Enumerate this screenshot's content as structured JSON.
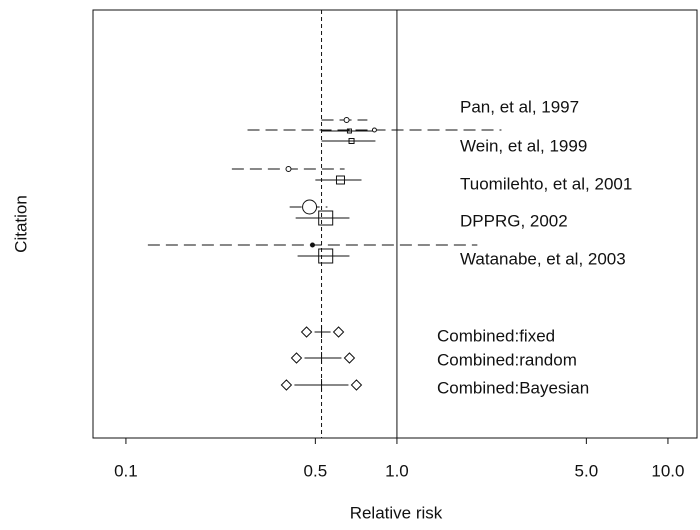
{
  "chart_data": {
    "type": "forest",
    "x_label": "Relative risk",
    "y_label": "Citation",
    "log_x": true,
    "xlim": [
      0.0756,
      12.8
    ],
    "xticks": [
      0.1,
      0.5,
      {
        "value": 1,
        "label": "1.0"
      },
      {
        "value": 5,
        "label": "5.0"
      },
      {
        "value": 10,
        "label": "10.0"
      }
    ],
    "reference_line": 1,
    "pooled_line": 0.527,
    "studies": [
      {
        "name": "Pan, et al, 1997",
        "observed": {
          "estimate": 0.652,
          "lower": 0.527,
          "upper": 0.778
        },
        "shrunken": {
          "estimate": 0.668,
          "lower": 0.527,
          "upper": 0.818
        }
      },
      {
        "name": "Wein, et al, 1999",
        "observed": {
          "estimate": 0.826,
          "lower": 0.281,
          "upper": 2.43
        },
        "shrunken": {
          "estimate": 0.68,
          "lower": 0.527,
          "upper": 0.833
        }
      },
      {
        "name": "Tuomilehto, et al, 2001",
        "observed": {
          "estimate": 0.398,
          "lower": 0.246,
          "upper": 0.641
        },
        "shrunken": {
          "estimate": 0.619,
          "lower": 0.5,
          "upper": 0.74
        }
      },
      {
        "name": "DPPRG, 2002",
        "observed": {
          "estimate": 0.476,
          "lower": 0.402,
          "upper": 0.554
        },
        "shrunken": {
          "estimate": 0.546,
          "lower": 0.423,
          "upper": 0.668
        }
      },
      {
        "name": "Watanabe, et al, 2003",
        "observed": {
          "estimate": 0.488,
          "lower": 0.1205,
          "upper": 1.98
        },
        "shrunken": {
          "estimate": 0.546,
          "lower": 0.43,
          "upper": 0.668
        }
      }
    ],
    "combined": [
      {
        "name": "Combined:fixed",
        "estimate": 0.527,
        "lower": 0.464,
        "upper": 0.609
      },
      {
        "name": "Combined:random",
        "estimate": 0.527,
        "lower": 0.426,
        "upper": 0.668
      },
      {
        "name": "Combined:Bayesian",
        "estimate": 0.527,
        "lower": 0.391,
        "upper": 0.709
      }
    ]
  }
}
